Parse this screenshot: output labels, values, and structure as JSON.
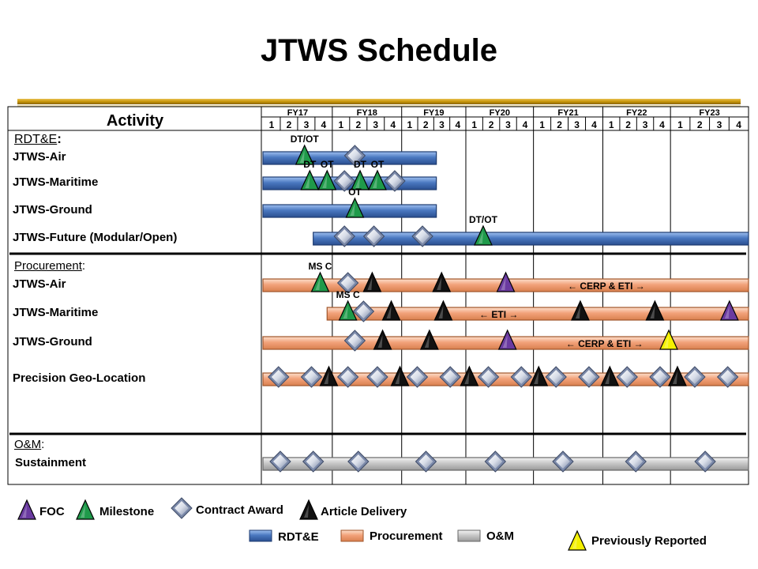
{
  "title": "JTWS Schedule",
  "table": {
    "activity_header": "Activity",
    "fiscal_years": [
      "FY17",
      "FY18",
      "FY19",
      "FY20",
      "FY21",
      "FY22",
      "FY23"
    ],
    "quarters": [
      "1",
      "2",
      "3",
      "4"
    ]
  },
  "sections": [
    {
      "name": "RDT&E",
      "suffix": ":",
      "rows": [
        {
          "label": "JTWS-Air",
          "bar": {
            "type": "rdte",
            "start_q": 0,
            "end_q": 10
          },
          "markers": [
            {
              "type": "milestone",
              "q": 2.4,
              "label": "DT/OT"
            },
            {
              "type": "contract",
              "q": 5.3
            }
          ]
        },
        {
          "label": "JTWS-Maritime",
          "bar": {
            "type": "rdte",
            "start_q": 0,
            "end_q": 10
          },
          "markers": [
            {
              "type": "milestone",
              "q": 2.7,
              "label": "DT"
            },
            {
              "type": "milestone",
              "q": 3.7,
              "label": "OT"
            },
            {
              "type": "contract",
              "q": 4.7
            },
            {
              "type": "milestone",
              "q": 5.6,
              "label": "DT"
            },
            {
              "type": "milestone",
              "q": 6.6,
              "label": "OT"
            },
            {
              "type": "contract",
              "q": 7.6
            }
          ]
        },
        {
          "label": "JTWS-Ground",
          "bar": {
            "type": "rdte",
            "start_q": 0,
            "end_q": 10
          },
          "markers": [
            {
              "type": "milestone",
              "q": 5.3,
              "label": "OT"
            }
          ]
        },
        {
          "label": "JTWS-Future (Modular/Open)",
          "bar": {
            "type": "rdte",
            "start_q": 2.9,
            "end_q": 28
          },
          "markers": [
            {
              "type": "contract",
              "q": 4.7
            },
            {
              "type": "contract",
              "q": 6.4
            },
            {
              "type": "contract",
              "q": 9.2
            },
            {
              "type": "milestone",
              "q": 12.7,
              "label": "DT/OT"
            }
          ]
        }
      ]
    },
    {
      "name": "Procurement",
      "suffix": ":",
      "rows": [
        {
          "label": "JTWS-Air",
          "bar": {
            "type": "procurement",
            "start_q": 0,
            "end_q": 28
          },
          "markers": [
            {
              "type": "milestone",
              "q": 3.3,
              "label": "MS C"
            },
            {
              "type": "contract",
              "q": 4.9
            },
            {
              "type": "delivery",
              "q": 6.3
            },
            {
              "type": "delivery",
              "q": 10.3
            },
            {
              "type": "foc",
              "q": 14.0
            }
          ],
          "annotation": {
            "q": 19.8,
            "text": "CERP & ETI"
          }
        },
        {
          "label": "JTWS-Maritime",
          "bar": {
            "type": "procurement",
            "start_q": 3.7,
            "end_q": 28
          },
          "markers": [
            {
              "type": "milestone",
              "q": 4.9,
              "label": "MS C"
            },
            {
              "type": "contract",
              "q": 5.8
            },
            {
              "type": "delivery",
              "q": 7.4
            },
            {
              "type": "delivery",
              "q": 10.4
            },
            {
              "type": "delivery",
              "q": 18.3
            },
            {
              "type": "delivery",
              "q": 22.6
            },
            {
              "type": "foc",
              "q": 26.9
            }
          ],
          "annotation": {
            "q": 13.6,
            "text": "ETI"
          }
        },
        {
          "label": "JTWS-Ground",
          "bar": {
            "type": "procurement",
            "start_q": 0,
            "end_q": 28
          },
          "markers": [
            {
              "type": "contract",
              "q": 5.3
            },
            {
              "type": "delivery",
              "q": 6.9
            },
            {
              "type": "delivery",
              "q": 9.6
            },
            {
              "type": "foc",
              "q": 14.1
            },
            {
              "type": "previous",
              "q": 23.4
            }
          ],
          "annotation": {
            "q": 19.7,
            "text": "CERP & ETI"
          }
        },
        {
          "label": "Precision Geo-Location",
          "bar": {
            "type": "procurement",
            "start_q": 0,
            "end_q": 28
          },
          "markers": [
            {
              "type": "contract",
              "q": 0.9
            },
            {
              "type": "contract",
              "q": 2.8
            },
            {
              "type": "delivery",
              "q": 3.8
            },
            {
              "type": "contract",
              "q": 4.9
            },
            {
              "type": "contract",
              "q": 6.6
            },
            {
              "type": "delivery",
              "q": 7.9
            },
            {
              "type": "contract",
              "q": 8.9
            },
            {
              "type": "contract",
              "q": 10.8
            },
            {
              "type": "delivery",
              "q": 11.9
            },
            {
              "type": "contract",
              "q": 13.0
            },
            {
              "type": "contract",
              "q": 14.9
            },
            {
              "type": "delivery",
              "q": 15.9
            },
            {
              "type": "contract",
              "q": 16.9
            },
            {
              "type": "contract",
              "q": 18.8
            },
            {
              "type": "delivery",
              "q": 20.0
            },
            {
              "type": "contract",
              "q": 21.0
            },
            {
              "type": "contract",
              "q": 22.9
            },
            {
              "type": "delivery",
              "q": 23.9
            },
            {
              "type": "contract",
              "q": 24.9
            },
            {
              "type": "contract",
              "q": 26.8
            }
          ]
        }
      ]
    },
    {
      "name": "O&M",
      "suffix": ":",
      "rows": [
        {
          "label": "Sustainment",
          "bar": {
            "type": "om",
            "start_q": 0,
            "end_q": 28
          },
          "markers": [
            {
              "type": "contract",
              "q": 1.0
            },
            {
              "type": "contract",
              "q": 2.9
            },
            {
              "type": "contract",
              "q": 5.5
            },
            {
              "type": "contract",
              "q": 9.4
            },
            {
              "type": "contract",
              "q": 13.4
            },
            {
              "type": "contract",
              "q": 17.3
            },
            {
              "type": "contract",
              "q": 21.5
            },
            {
              "type": "contract",
              "q": 25.5
            }
          ]
        }
      ]
    }
  ],
  "legend": {
    "foc": "FOC",
    "milestone": "Milestone",
    "contract": "Contract Award",
    "delivery": "Article Delivery",
    "rdte": "RDT&E",
    "procurement": "Procurement",
    "om": "O&M",
    "previous": "Previously Reported"
  },
  "colors": {
    "rdte_bar": "#4a78c0",
    "procurement_bar": "#f2a27a",
    "om_bar": "#c8c8c8",
    "milestone": "#1f9a4a",
    "foc": "#6a3aa0",
    "delivery": "#111111",
    "previous": "#f4f000",
    "gold_rule": "#c8960a"
  }
}
